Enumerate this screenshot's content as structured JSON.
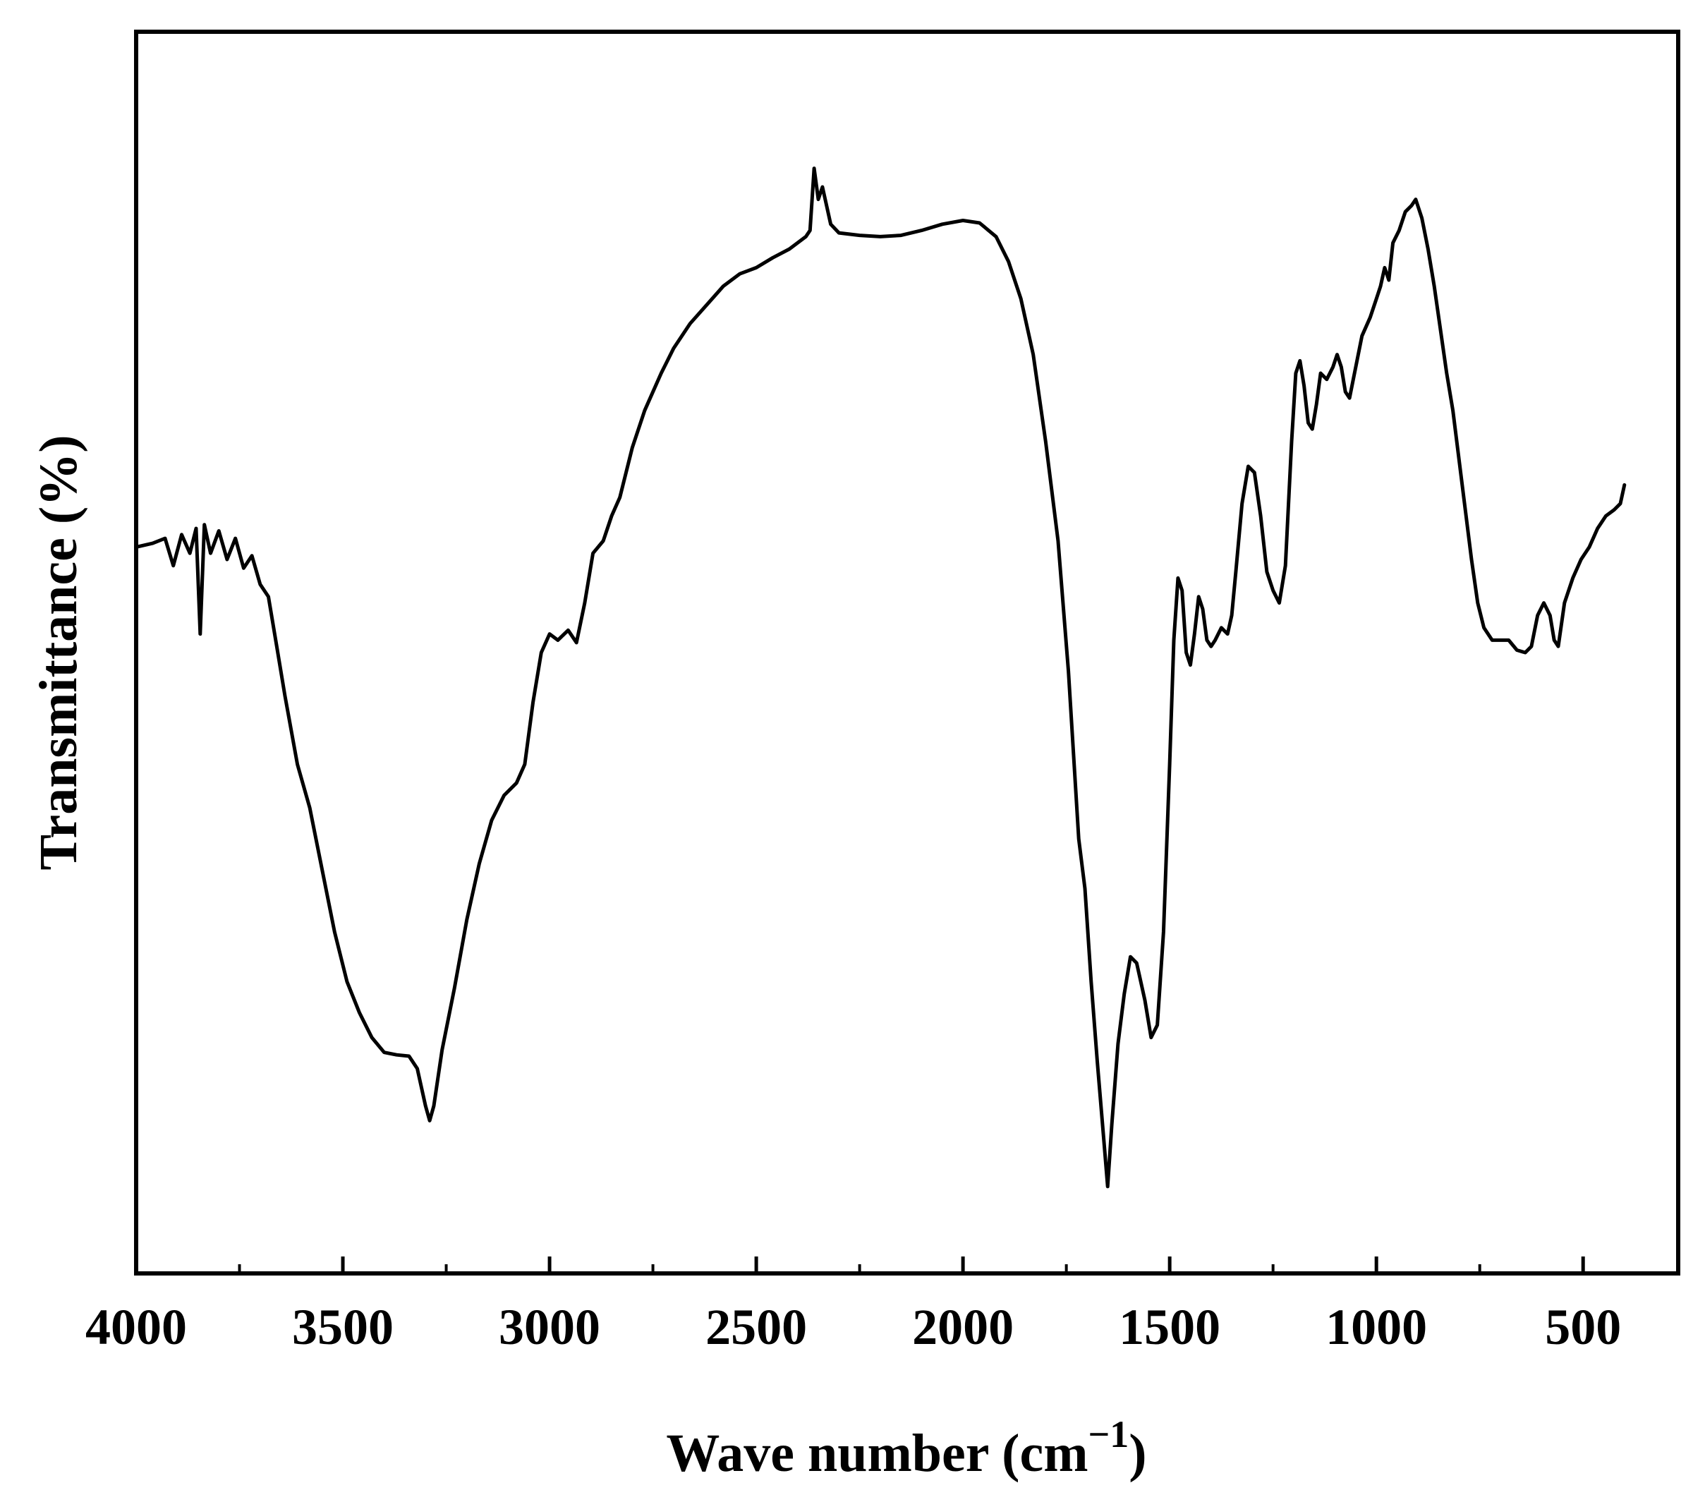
{
  "chart_data": {
    "type": "line",
    "title": "",
    "xlabel_main": "Wave number (cm",
    "xlabel_sup": "−1",
    "xlabel_close": ")",
    "ylabel": "Transmittance (%)",
    "xlim": [
      4000,
      270
    ],
    "ylim": [
      0,
      100
    ],
    "x_reversed": true,
    "x_ticks_major": [
      4000,
      3500,
      3000,
      2500,
      2000,
      1500,
      1000,
      500
    ],
    "x_tick_labels": [
      "4000",
      "3500",
      "3000",
      "2500",
      "2000",
      "1500",
      "1000",
      "500"
    ],
    "x_ticks_minor": [
      3750,
      3250,
      2750,
      2250,
      1750,
      1250,
      750
    ],
    "y_ticks_shown": false,
    "grid": false,
    "line_color": "#000000",
    "series": [
      {
        "values": [
          [
            4000,
            58.5
          ],
          [
            3960,
            58.8
          ],
          [
            3930,
            59.2
          ],
          [
            3910,
            57.0
          ],
          [
            3890,
            59.5
          ],
          [
            3870,
            58.0
          ],
          [
            3855,
            60.0
          ],
          [
            3845,
            51.5
          ],
          [
            3835,
            60.3
          ],
          [
            3820,
            58.0
          ],
          [
            3800,
            59.8
          ],
          [
            3780,
            57.5
          ],
          [
            3760,
            59.2
          ],
          [
            3740,
            56.8
          ],
          [
            3720,
            57.8
          ],
          [
            3700,
            55.5
          ],
          [
            3680,
            54.5
          ],
          [
            3660,
            50.5
          ],
          [
            3640,
            46.5
          ],
          [
            3610,
            41.0
          ],
          [
            3580,
            37.5
          ],
          [
            3550,
            32.5
          ],
          [
            3520,
            27.5
          ],
          [
            3490,
            23.5
          ],
          [
            3460,
            21.0
          ],
          [
            3430,
            19.0
          ],
          [
            3400,
            17.8
          ],
          [
            3370,
            17.6
          ],
          [
            3340,
            17.5
          ],
          [
            3320,
            16.5
          ],
          [
            3300,
            13.5
          ],
          [
            3290,
            12.3
          ],
          [
            3280,
            13.5
          ],
          [
            3260,
            18.0
          ],
          [
            3230,
            23.0
          ],
          [
            3200,
            28.5
          ],
          [
            3170,
            33.0
          ],
          [
            3140,
            36.5
          ],
          [
            3110,
            38.5
          ],
          [
            3080,
            39.5
          ],
          [
            3060,
            41.0
          ],
          [
            3040,
            46.0
          ],
          [
            3020,
            50.0
          ],
          [
            3000,
            51.5
          ],
          [
            2980,
            51.0
          ],
          [
            2955,
            51.8
          ],
          [
            2935,
            50.8
          ],
          [
            2915,
            54.0
          ],
          [
            2895,
            58.0
          ],
          [
            2870,
            59.0
          ],
          [
            2850,
            61.0
          ],
          [
            2830,
            62.5
          ],
          [
            2800,
            66.5
          ],
          [
            2770,
            69.5
          ],
          [
            2730,
            72.5
          ],
          [
            2700,
            74.5
          ],
          [
            2660,
            76.5
          ],
          [
            2620,
            78.0
          ],
          [
            2580,
            79.5
          ],
          [
            2540,
            80.5
          ],
          [
            2500,
            81.0
          ],
          [
            2460,
            81.8
          ],
          [
            2420,
            82.5
          ],
          [
            2380,
            83.5
          ],
          [
            2370,
            84.0
          ],
          [
            2360,
            89.0
          ],
          [
            2350,
            86.5
          ],
          [
            2340,
            87.5
          ],
          [
            2320,
            84.5
          ],
          [
            2300,
            83.8
          ],
          [
            2250,
            83.6
          ],
          [
            2200,
            83.5
          ],
          [
            2150,
            83.6
          ],
          [
            2100,
            84.0
          ],
          [
            2050,
            84.5
          ],
          [
            2000,
            84.8
          ],
          [
            1960,
            84.6
          ],
          [
            1920,
            83.5
          ],
          [
            1890,
            81.5
          ],
          [
            1860,
            78.5
          ],
          [
            1830,
            74.0
          ],
          [
            1800,
            67.0
          ],
          [
            1770,
            59.0
          ],
          [
            1745,
            48.5
          ],
          [
            1720,
            35.0
          ],
          [
            1705,
            31.0
          ],
          [
            1690,
            23.5
          ],
          [
            1675,
            17.0
          ],
          [
            1660,
            11.0
          ],
          [
            1650,
            7.0
          ],
          [
            1640,
            12.0
          ],
          [
            1625,
            18.5
          ],
          [
            1610,
            22.5
          ],
          [
            1595,
            25.5
          ],
          [
            1580,
            25.0
          ],
          [
            1560,
            22.0
          ],
          [
            1545,
            19.0
          ],
          [
            1530,
            20.0
          ],
          [
            1515,
            27.5
          ],
          [
            1500,
            41.0
          ],
          [
            1490,
            51.0
          ],
          [
            1480,
            56.0
          ],
          [
            1470,
            55.0
          ],
          [
            1460,
            50.0
          ],
          [
            1450,
            49.0
          ],
          [
            1440,
            51.5
          ],
          [
            1430,
            54.5
          ],
          [
            1420,
            53.5
          ],
          [
            1410,
            51.0
          ],
          [
            1400,
            50.5
          ],
          [
            1390,
            51.0
          ],
          [
            1375,
            52.0
          ],
          [
            1360,
            51.5
          ],
          [
            1350,
            53.0
          ],
          [
            1340,
            56.5
          ],
          [
            1325,
            62.0
          ],
          [
            1310,
            65.0
          ],
          [
            1295,
            64.5
          ],
          [
            1280,
            61.0
          ],
          [
            1265,
            56.5
          ],
          [
            1250,
            55.0
          ],
          [
            1235,
            54.0
          ],
          [
            1220,
            57.0
          ],
          [
            1205,
            67.0
          ],
          [
            1195,
            72.5
          ],
          [
            1185,
            73.5
          ],
          [
            1175,
            71.5
          ],
          [
            1165,
            68.5
          ],
          [
            1155,
            68.0
          ],
          [
            1145,
            70.0
          ],
          [
            1135,
            72.5
          ],
          [
            1120,
            72.0
          ],
          [
            1105,
            73.0
          ],
          [
            1095,
            74.0
          ],
          [
            1085,
            73.0
          ],
          [
            1075,
            71.0
          ],
          [
            1065,
            70.5
          ],
          [
            1050,
            73.0
          ],
          [
            1035,
            75.5
          ],
          [
            1015,
            77.0
          ],
          [
            1000,
            78.5
          ],
          [
            990,
            79.5
          ],
          [
            980,
            81.0
          ],
          [
            970,
            80.0
          ],
          [
            960,
            83.0
          ],
          [
            945,
            84.0
          ],
          [
            930,
            85.5
          ],
          [
            915,
            86.0
          ],
          [
            905,
            86.5
          ],
          [
            890,
            85.0
          ],
          [
            875,
            82.5
          ],
          [
            860,
            79.5
          ],
          [
            845,
            76.0
          ],
          [
            830,
            72.5
          ],
          [
            815,
            69.5
          ],
          [
            800,
            65.5
          ],
          [
            785,
            61.5
          ],
          [
            770,
            57.5
          ],
          [
            755,
            54.0
          ],
          [
            740,
            52.0
          ],
          [
            720,
            51.0
          ],
          [
            700,
            51.0
          ],
          [
            680,
            51.0
          ],
          [
            660,
            50.2
          ],
          [
            640,
            50.0
          ],
          [
            625,
            50.5
          ],
          [
            610,
            53.0
          ],
          [
            595,
            54.0
          ],
          [
            580,
            53.0
          ],
          [
            570,
            51.0
          ],
          [
            560,
            50.5
          ],
          [
            545,
            54.0
          ],
          [
            525,
            56.0
          ],
          [
            505,
            57.5
          ],
          [
            485,
            58.5
          ],
          [
            465,
            60.0
          ],
          [
            445,
            61.0
          ],
          [
            425,
            61.5
          ],
          [
            410,
            62.0
          ],
          [
            400,
            63.5
          ]
        ]
      }
    ]
  }
}
